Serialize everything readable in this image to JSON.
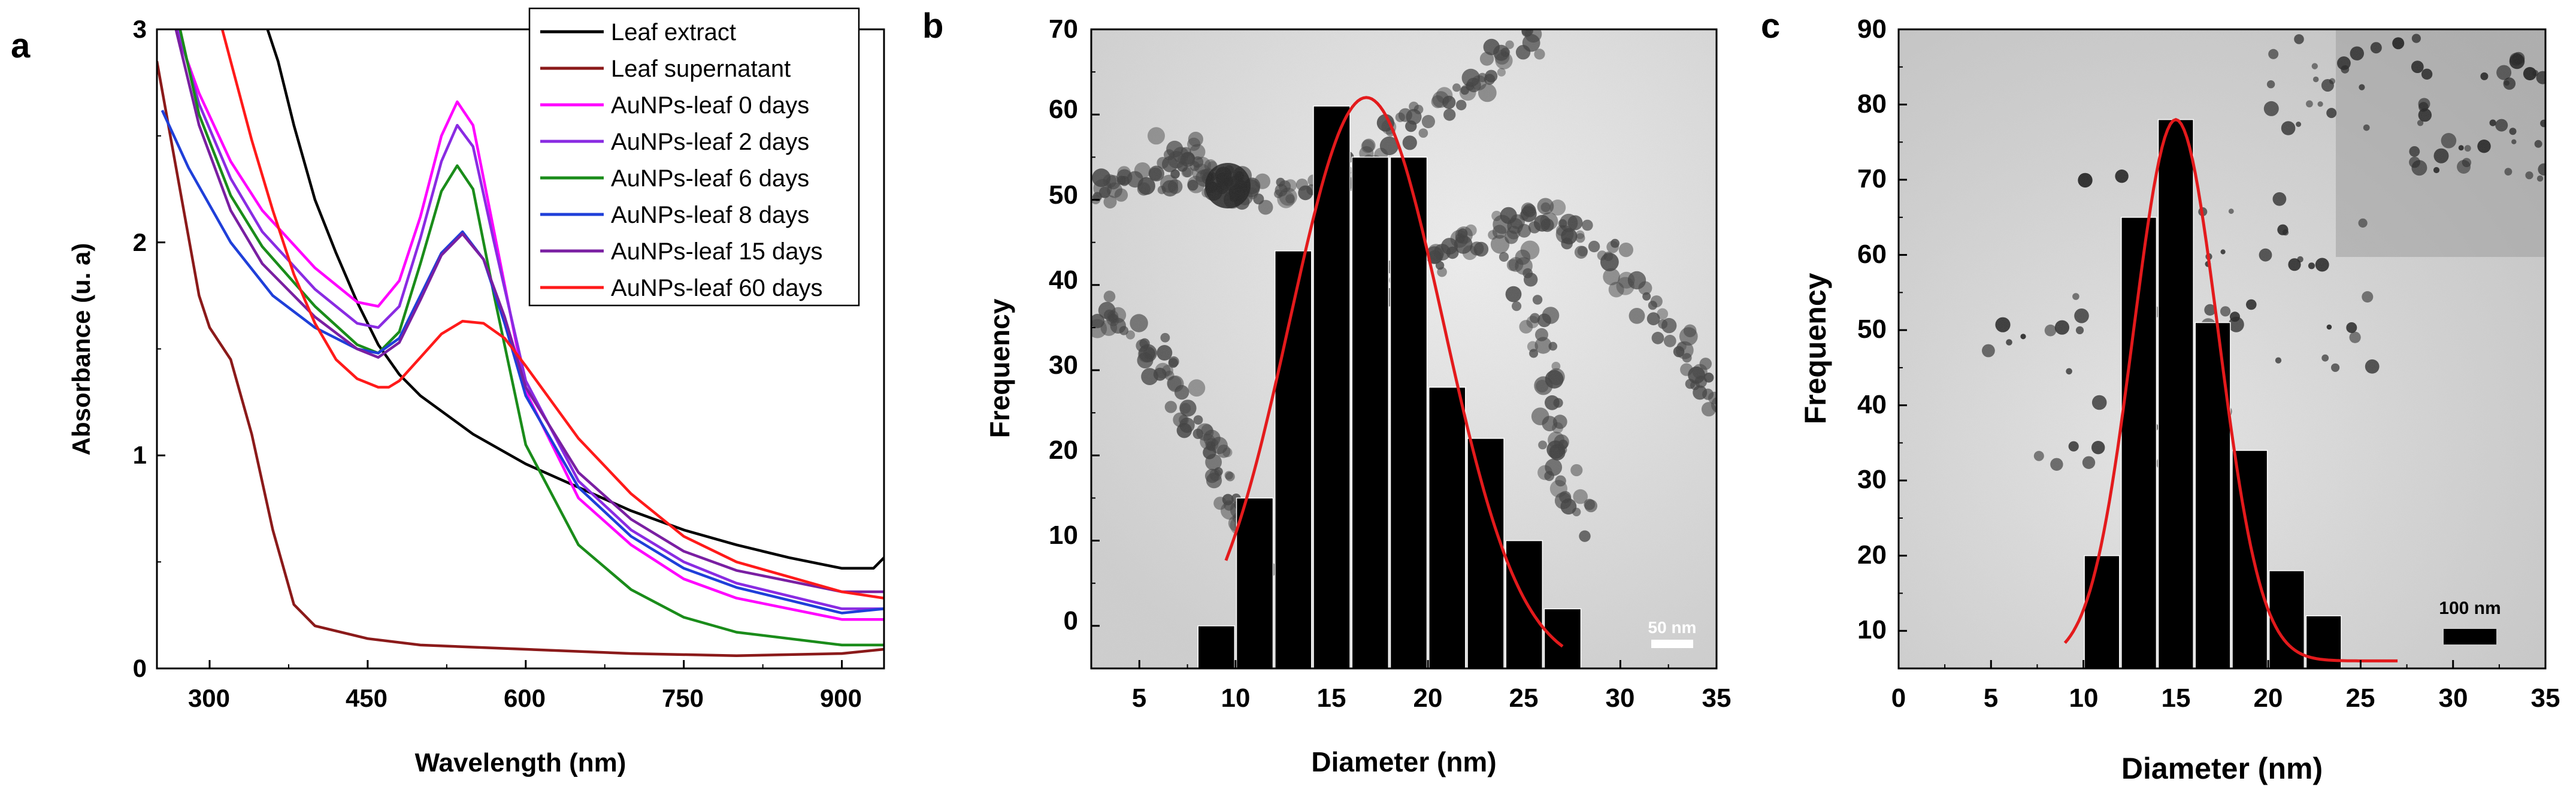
{
  "figure": {
    "panel_labels": [
      "a",
      "b",
      "c"
    ],
    "scale_bars": [
      "50 nm",
      "100 nm"
    ]
  },
  "chart_data": [
    {
      "type": "line",
      "panel": "a",
      "xlabel": "Wavelength (nm)",
      "ylabel": "Absorbance (u. a)",
      "xlim": [
        250,
        940
      ],
      "ylim": [
        0,
        3
      ],
      "xticks": [
        "300",
        "450",
        "600",
        "750",
        "900"
      ],
      "yticks": [
        "0",
        "1",
        "2",
        "3"
      ],
      "legend_position": "top-right",
      "series": [
        {
          "name": "Leaf extract",
          "color": "#000000",
          "x": [
            355,
            365,
            380,
            400,
            420,
            440,
            460,
            480,
            500,
            550,
            600,
            650,
            700,
            750,
            800,
            850,
            900,
            930,
            940
          ],
          "y": [
            3.0,
            2.85,
            2.55,
            2.2,
            1.95,
            1.72,
            1.52,
            1.38,
            1.28,
            1.1,
            0.96,
            0.85,
            0.74,
            0.65,
            0.58,
            0.52,
            0.47,
            0.47,
            0.52
          ]
        },
        {
          "name": "Leaf supernatant",
          "color": "#8b1a1a",
          "x": [
            250,
            270,
            290,
            300,
            320,
            340,
            360,
            380,
            400,
            450,
            500,
            600,
            700,
            800,
            900,
            940
          ],
          "y": [
            2.85,
            2.3,
            1.75,
            1.6,
            1.45,
            1.1,
            0.65,
            0.3,
            0.2,
            0.14,
            0.11,
            0.09,
            0.07,
            0.06,
            0.07,
            0.09
          ]
        },
        {
          "name": "AuNPs-leaf 0 days",
          "color": "#ff00ff",
          "x": [
            268,
            290,
            320,
            350,
            400,
            440,
            460,
            480,
            500,
            520,
            535,
            550,
            570,
            600,
            650,
            700,
            750,
            800,
            900,
            940
          ],
          "y": [
            3.0,
            2.7,
            2.38,
            2.15,
            1.88,
            1.72,
            1.7,
            1.82,
            2.12,
            2.5,
            2.66,
            2.55,
            2.05,
            1.3,
            0.8,
            0.58,
            0.42,
            0.33,
            0.23,
            0.23
          ]
        },
        {
          "name": "AuNPs-leaf 2 days",
          "color": "#8a2be2",
          "x": [
            270,
            290,
            320,
            350,
            400,
            440,
            460,
            480,
            500,
            520,
            535,
            550,
            570,
            600,
            650,
            700,
            750,
            800,
            900,
            940
          ],
          "y": [
            3.0,
            2.65,
            2.3,
            2.05,
            1.78,
            1.62,
            1.6,
            1.7,
            2.02,
            2.38,
            2.55,
            2.45,
            2.0,
            1.35,
            0.88,
            0.65,
            0.5,
            0.4,
            0.28,
            0.28
          ]
        },
        {
          "name": "AuNPs-leaf 6 days",
          "color": "#1a8c1a",
          "x": [
            272,
            290,
            320,
            350,
            400,
            440,
            460,
            480,
            500,
            520,
            535,
            550,
            570,
            600,
            650,
            700,
            750,
            800,
            900,
            940
          ],
          "y": [
            3.0,
            2.6,
            2.22,
            1.98,
            1.7,
            1.52,
            1.48,
            1.58,
            1.9,
            2.24,
            2.36,
            2.25,
            1.75,
            1.05,
            0.58,
            0.37,
            0.24,
            0.17,
            0.11,
            0.11
          ]
        },
        {
          "name": "AuNPs-leaf 8 days",
          "color": "#1f3fd9",
          "x": [
            255,
            280,
            320,
            360,
            400,
            440,
            460,
            480,
            500,
            520,
            540,
            560,
            580,
            600,
            650,
            700,
            750,
            800,
            900,
            940
          ],
          "y": [
            2.62,
            2.35,
            2.0,
            1.75,
            1.6,
            1.5,
            1.48,
            1.55,
            1.75,
            1.95,
            2.05,
            1.92,
            1.62,
            1.28,
            0.85,
            0.62,
            0.47,
            0.38,
            0.26,
            0.28
          ]
        },
        {
          "name": "AuNPs-leaf 15 days",
          "color": "#7a1fa2",
          "x": [
            268,
            290,
            320,
            350,
            400,
            440,
            460,
            480,
            500,
            520,
            540,
            560,
            580,
            600,
            650,
            700,
            750,
            800,
            900,
            940
          ],
          "y": [
            3.0,
            2.55,
            2.15,
            1.9,
            1.65,
            1.5,
            1.46,
            1.53,
            1.73,
            1.94,
            2.04,
            1.92,
            1.65,
            1.32,
            0.92,
            0.7,
            0.55,
            0.46,
            0.36,
            0.36
          ]
        },
        {
          "name": "AuNPs-leaf 60 days",
          "color": "#ff1a1a",
          "x": [
            312,
            320,
            340,
            360,
            380,
            400,
            420,
            440,
            460,
            470,
            480,
            500,
            520,
            540,
            560,
            580,
            600,
            650,
            700,
            750,
            800,
            900,
            940
          ],
          "y": [
            3.0,
            2.85,
            2.48,
            2.15,
            1.85,
            1.62,
            1.45,
            1.36,
            1.32,
            1.32,
            1.35,
            1.46,
            1.57,
            1.63,
            1.62,
            1.55,
            1.42,
            1.08,
            0.82,
            0.62,
            0.5,
            0.36,
            0.33
          ]
        }
      ]
    },
    {
      "type": "bar",
      "panel": "b",
      "xlabel": "Diameter (nm)",
      "ylabel": "Frequency",
      "xlim": [
        2.5,
        35
      ],
      "ylim": [
        -5,
        70
      ],
      "xticks": [
        "5",
        "10",
        "15",
        "20",
        "25",
        "30",
        "35"
      ],
      "yticks": [
        "0",
        "10",
        "20",
        "30",
        "40",
        "50",
        "60",
        "70"
      ],
      "bar_width": 1.9,
      "categories": [
        9,
        11,
        13,
        15,
        17,
        19,
        21,
        23,
        25,
        27
      ],
      "values": [
        0,
        15,
        44,
        61,
        55,
        55,
        28,
        22,
        10,
        2
      ],
      "fit": {
        "type": "gaussian",
        "color": "#e31a1c",
        "x_range": [
          9.5,
          27
        ],
        "center": 16.8,
        "sigma": 4.0,
        "amplitude": 67,
        "offset": -5
      }
    },
    {
      "type": "bar",
      "panel": "c",
      "xlabel": "Diameter (nm)",
      "ylabel": "Frequency",
      "xlim": [
        0,
        35
      ],
      "ylim": [
        5,
        90
      ],
      "xticks": [
        "0",
        "5",
        "10",
        "15",
        "20",
        "25",
        "30",
        "35"
      ],
      "yticks": [
        "10",
        "20",
        "30",
        "40",
        "50",
        "60",
        "70",
        "80",
        "90"
      ],
      "bar_width": 1.9,
      "categories": [
        11,
        13,
        15,
        17,
        19,
        21,
        23
      ],
      "values": [
        20,
        65,
        78,
        51,
        34,
        18,
        12
      ],
      "fit": {
        "type": "gaussian",
        "color": "#e31a1c",
        "x_range": [
          9,
          27
        ],
        "center": 15,
        "sigma": 2.3,
        "amplitude": 72,
        "offset": 6
      }
    }
  ]
}
